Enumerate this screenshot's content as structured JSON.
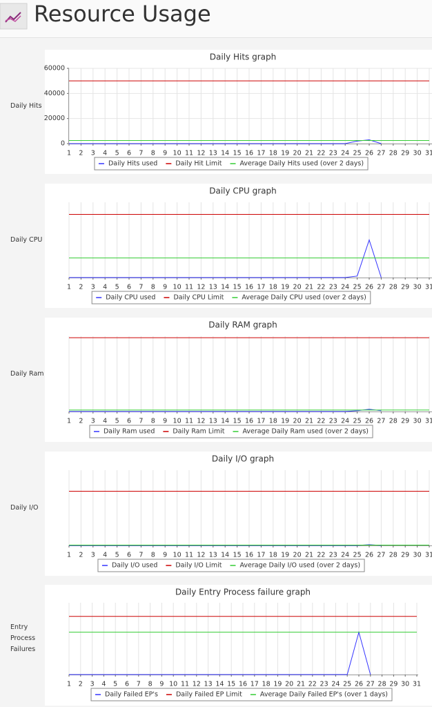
{
  "header": {
    "title": "Resource Usage"
  },
  "chart_data": [
    {
      "type": "line",
      "title": "Daily Hits graph",
      "y_label": "Daily Hits",
      "x": [
        1,
        2,
        3,
        4,
        5,
        6,
        7,
        8,
        9,
        10,
        11,
        12,
        13,
        14,
        15,
        16,
        17,
        18,
        19,
        20,
        21,
        22,
        23,
        24,
        25,
        26,
        27,
        28,
        29,
        30,
        31
      ],
      "xlim": [
        1,
        31
      ],
      "ylim": [
        0,
        60000
      ],
      "yticks": [
        0,
        20000,
        40000,
        60000
      ],
      "grid": true,
      "series": [
        {
          "name": "Daily Hits used",
          "color": "#3333ff",
          "values": [
            0,
            0,
            0,
            0,
            0,
            0,
            0,
            0,
            0,
            0,
            0,
            0,
            0,
            0,
            0,
            0,
            0,
            0,
            0,
            0,
            0,
            0,
            0,
            0,
            2000,
            3000,
            0,
            null,
            null,
            null,
            null
          ]
        },
        {
          "name": "Daily Hit Limit",
          "color": "#cc0000",
          "values": [
            50000,
            50000,
            50000,
            50000,
            50000,
            50000,
            50000,
            50000,
            50000,
            50000,
            50000,
            50000,
            50000,
            50000,
            50000,
            50000,
            50000,
            50000,
            50000,
            50000,
            50000,
            50000,
            50000,
            50000,
            50000,
            50000,
            50000,
            50000,
            50000,
            50000,
            50000
          ]
        },
        {
          "name": "Average Daily Hits used (over 2 days)",
          "color": "#33cc33",
          "values": [
            2500,
            2500,
            2500,
            2500,
            2500,
            2500,
            2500,
            2500,
            2500,
            2500,
            2500,
            2500,
            2500,
            2500,
            2500,
            2500,
            2500,
            2500,
            2500,
            2500,
            2500,
            2500,
            2500,
            2500,
            2500,
            2500,
            2500,
            2500,
            2500,
            2500,
            2500
          ]
        }
      ]
    },
    {
      "type": "line",
      "title": "Daily CPU graph",
      "y_label": "Daily CPU",
      "x": [
        1,
        2,
        3,
        4,
        5,
        6,
        7,
        8,
        9,
        10,
        11,
        12,
        13,
        14,
        15,
        16,
        17,
        18,
        19,
        20,
        21,
        22,
        23,
        24,
        25,
        26,
        27,
        28,
        29,
        30,
        31
      ],
      "xlim": [
        1,
        31
      ],
      "ylim": [
        0,
        100
      ],
      "grid": true,
      "series": [
        {
          "name": "Daily CPU used",
          "color": "#3333ff",
          "values": [
            0,
            0,
            0,
            0,
            0,
            0,
            0,
            0,
            0,
            0,
            0,
            0,
            0,
            0,
            0,
            0,
            0,
            0,
            0,
            0,
            0,
            0,
            0,
            0,
            2,
            50,
            0,
            null,
            null,
            null,
            null
          ]
        },
        {
          "name": "Daily CPU Limit",
          "color": "#cc0000",
          "values": [
            84,
            84,
            84,
            84,
            84,
            84,
            84,
            84,
            84,
            84,
            84,
            84,
            84,
            84,
            84,
            84,
            84,
            84,
            84,
            84,
            84,
            84,
            84,
            84,
            84,
            84,
            84,
            84,
            84,
            84,
            84
          ]
        },
        {
          "name": "Average Daily CPU used (over 2 days)",
          "color": "#33cc33",
          "values": [
            26,
            26,
            26,
            26,
            26,
            26,
            26,
            26,
            26,
            26,
            26,
            26,
            26,
            26,
            26,
            26,
            26,
            26,
            26,
            26,
            26,
            26,
            26,
            26,
            26,
            26,
            26,
            26,
            26,
            26,
            26
          ]
        }
      ]
    },
    {
      "type": "line",
      "title": "Daily RAM graph",
      "y_label": "Daily Ram",
      "x": [
        1,
        2,
        3,
        4,
        5,
        6,
        7,
        8,
        9,
        10,
        11,
        12,
        13,
        14,
        15,
        16,
        17,
        18,
        19,
        20,
        21,
        22,
        23,
        24,
        25,
        26,
        27,
        28,
        29,
        30,
        31
      ],
      "xlim": [
        1,
        31
      ],
      "ylim": [
        0,
        100
      ],
      "grid": true,
      "series": [
        {
          "name": "Daily Ram used",
          "color": "#3333ff",
          "values": [
            0,
            0,
            0,
            0,
            0,
            0,
            0,
            0,
            0,
            0,
            0,
            0,
            0,
            0,
            0,
            0,
            0,
            0,
            0,
            0,
            0,
            0,
            0,
            0,
            1,
            3,
            1,
            null,
            null,
            null,
            null
          ]
        },
        {
          "name": "Daily Ram Limit",
          "color": "#cc0000",
          "values": [
            98,
            98,
            98,
            98,
            98,
            98,
            98,
            98,
            98,
            98,
            98,
            98,
            98,
            98,
            98,
            98,
            98,
            98,
            98,
            98,
            98,
            98,
            98,
            98,
            98,
            98,
            98,
            98,
            98,
            98,
            98
          ]
        },
        {
          "name": "Average Daily Ram used  (over 2 days)",
          "color": "#33cc33",
          "values": [
            2,
            2,
            2,
            2,
            2,
            2,
            2,
            2,
            2,
            2,
            2,
            2,
            2,
            2,
            2,
            2,
            2,
            2,
            2,
            2,
            2,
            2,
            2,
            2,
            2,
            2,
            2,
            2,
            2,
            2,
            2
          ]
        }
      ]
    },
    {
      "type": "line",
      "title": "Daily I/O graph",
      "y_label": "Daily I/O",
      "x": [
        1,
        2,
        3,
        4,
        5,
        6,
        7,
        8,
        9,
        10,
        11,
        12,
        13,
        14,
        15,
        16,
        17,
        18,
        19,
        20,
        21,
        22,
        23,
        24,
        25,
        26,
        27,
        28,
        29,
        30,
        31
      ],
      "xlim": [
        1,
        31
      ],
      "ylim": [
        0,
        100
      ],
      "grid": true,
      "series": [
        {
          "name": "Daily I/O used",
          "color": "#3333ff",
          "values": [
            0,
            0,
            0,
            0,
            0,
            0,
            0,
            0,
            0,
            0,
            0,
            0,
            0,
            0,
            0,
            0,
            0,
            0,
            0,
            0,
            0,
            0,
            0,
            0,
            0,
            1,
            0,
            null,
            null,
            null,
            null
          ]
        },
        {
          "name": "Daily I/O Limit",
          "color": "#cc0000",
          "values": [
            72,
            72,
            72,
            72,
            72,
            72,
            72,
            72,
            72,
            72,
            72,
            72,
            72,
            72,
            72,
            72,
            72,
            72,
            72,
            72,
            72,
            72,
            72,
            72,
            72,
            72,
            72,
            72,
            72,
            72,
            72
          ]
        },
        {
          "name": "Average Daily I/O used (over 2 days)",
          "color": "#33cc33",
          "values": [
            0.5,
            0.5,
            0.5,
            0.5,
            0.5,
            0.5,
            0.5,
            0.5,
            0.5,
            0.5,
            0.5,
            0.5,
            0.5,
            0.5,
            0.5,
            0.5,
            0.5,
            0.5,
            0.5,
            0.5,
            0.5,
            0.5,
            0.5,
            0.5,
            0.5,
            0.5,
            0.5,
            0.5,
            0.5,
            0.5,
            0.5
          ]
        }
      ]
    },
    {
      "type": "line",
      "title": "Daily Entry Process failure graph",
      "y_label": "Entry Process Failures",
      "x": [
        1,
        2,
        3,
        4,
        5,
        6,
        7,
        8,
        9,
        10,
        11,
        12,
        13,
        14,
        15,
        16,
        17,
        18,
        19,
        20,
        21,
        22,
        23,
        24,
        25,
        26,
        27,
        28,
        29,
        30,
        31
      ],
      "xlim": [
        1,
        31
      ],
      "ylim": [
        0,
        100
      ],
      "grid": true,
      "series": [
        {
          "name": "Daily Failed EP's",
          "color": "#3333ff",
          "values": [
            0,
            0,
            0,
            0,
            0,
            0,
            0,
            0,
            0,
            0,
            0,
            0,
            0,
            0,
            0,
            0,
            0,
            0,
            0,
            0,
            0,
            0,
            0,
            0,
            0,
            59,
            0,
            null,
            null,
            null,
            null
          ]
        },
        {
          "name": "Daily Failed EP Limit",
          "color": "#cc0000",
          "values": [
            81,
            81,
            81,
            81,
            81,
            81,
            81,
            81,
            81,
            81,
            81,
            81,
            81,
            81,
            81,
            81,
            81,
            81,
            81,
            81,
            81,
            81,
            81,
            81,
            81,
            81,
            81,
            81,
            81,
            81,
            81
          ]
        },
        {
          "name": "Average Daily Failed EP's  (over 1 days)",
          "color": "#33cc33",
          "values": [
            59,
            59,
            59,
            59,
            59,
            59,
            59,
            59,
            59,
            59,
            59,
            59,
            59,
            59,
            59,
            59,
            59,
            59,
            59,
            59,
            59,
            59,
            59,
            59,
            59,
            59,
            59,
            59,
            59,
            59,
            59
          ]
        }
      ]
    }
  ]
}
